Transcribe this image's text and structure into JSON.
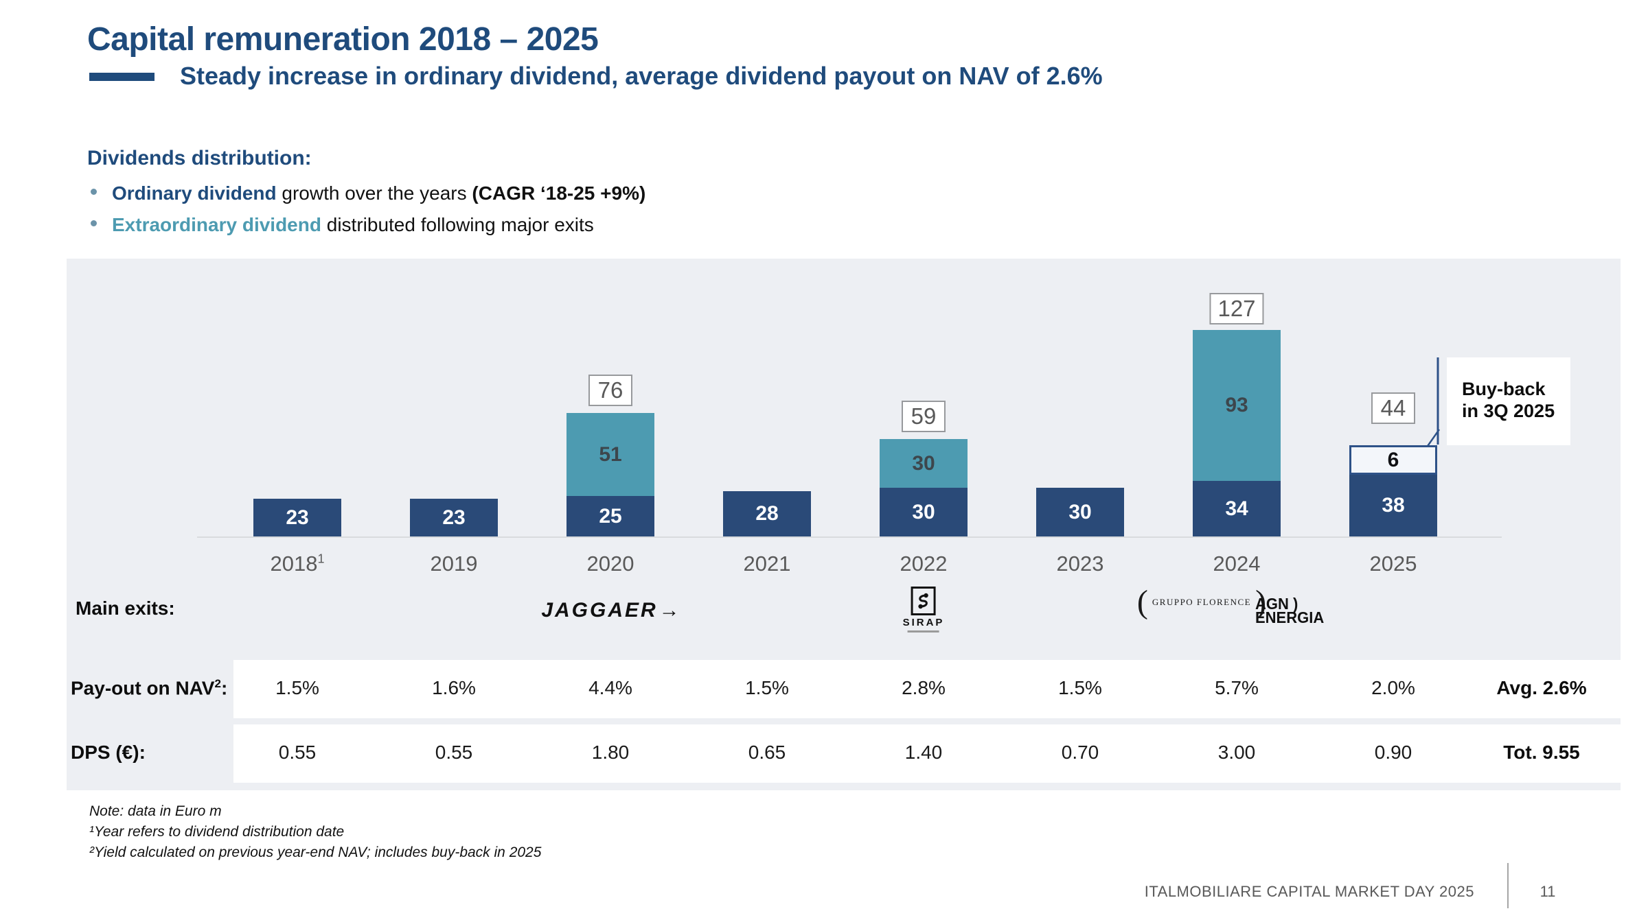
{
  "slide": {
    "title": "Capital remuneration 2018 – 2025",
    "subtitle": "Steady increase in ordinary dividend, average dividend payout on NAV of 2.6%",
    "footer": {
      "text": "ITALMOBILIARE CAPITAL MARKET DAY 2025",
      "page": "11"
    }
  },
  "intro": {
    "heading": "Dividends distribution:",
    "bullets": [
      {
        "lead": "Ordinary dividend",
        "mid": " growth over the years ",
        "bold_tail": "(CAGR ‘18-25 +9%)"
      },
      {
        "lead": "Extraordinary dividend",
        "mid": " distributed following major exits",
        "bold_tail": ""
      }
    ]
  },
  "chart_data": {
    "type": "bar",
    "stacked": true,
    "unit": "Euro m",
    "categories": [
      "2018",
      "2019",
      "2020",
      "2021",
      "2022",
      "2023",
      "2024",
      "2025"
    ],
    "category_sups": [
      "1",
      "",
      "",
      "",
      "",
      "",
      "",
      ""
    ],
    "series": [
      {
        "name": "Ordinary dividend",
        "color": "#2a4a78",
        "values": [
          23,
          23,
          25,
          28,
          30,
          30,
          34,
          38
        ]
      },
      {
        "name": "Extraordinary dividend",
        "color": "#4d9bb1",
        "values": [
          null,
          null,
          51,
          null,
          30,
          null,
          93,
          null
        ]
      },
      {
        "name": "Buy-back",
        "color": "#f3f6fa",
        "values": [
          null,
          null,
          null,
          null,
          null,
          null,
          null,
          6
        ]
      }
    ],
    "totals": [
      null,
      null,
      76,
      null,
      59,
      null,
      127,
      44
    ],
    "annotation": {
      "line1": "Buy-back",
      "line2": "in 3Q 2025"
    },
    "colors": {
      "navy": "#2a4a78",
      "teal": "#4d9bb1",
      "panel_bg": "#edeff3",
      "total_box_border": "#97999c"
    }
  },
  "main_exits": {
    "label": "Main exits:",
    "logos": [
      {
        "id": "jaggaer",
        "text": "JAGGAER",
        "arrow": "→"
      },
      {
        "id": "sirap",
        "glyph": "S",
        "text": "SIRAP"
      },
      {
        "id": "gruppo-florence",
        "paren_open": "(",
        "text": "GRUPPO FLORENCE",
        "paren_close": ")"
      },
      {
        "id": "agn-energia",
        "line1": "AGN )",
        "line2": "ENERGIA"
      }
    ]
  },
  "payout_row": {
    "label_prefix": "Pay-out on NAV",
    "label_sup": "2",
    "label_suffix": ":",
    "values": [
      "1.5%",
      "1.6%",
      "4.4%",
      "1.5%",
      "2.8%",
      "1.5%",
      "5.7%",
      "2.0%"
    ],
    "summary": "Avg. 2.6%"
  },
  "dps_row": {
    "label": "DPS (€):",
    "values": [
      "0.55",
      "0.55",
      "1.80",
      "0.65",
      "1.40",
      "0.70",
      "3.00",
      "0.90"
    ],
    "summary": "Tot. 9.55"
  },
  "notes": [
    "Note: data in Euro m",
    "¹Year refers to dividend distribution date",
    "²Yield calculated on previous year-end NAV; includes buy-back in 2025"
  ]
}
